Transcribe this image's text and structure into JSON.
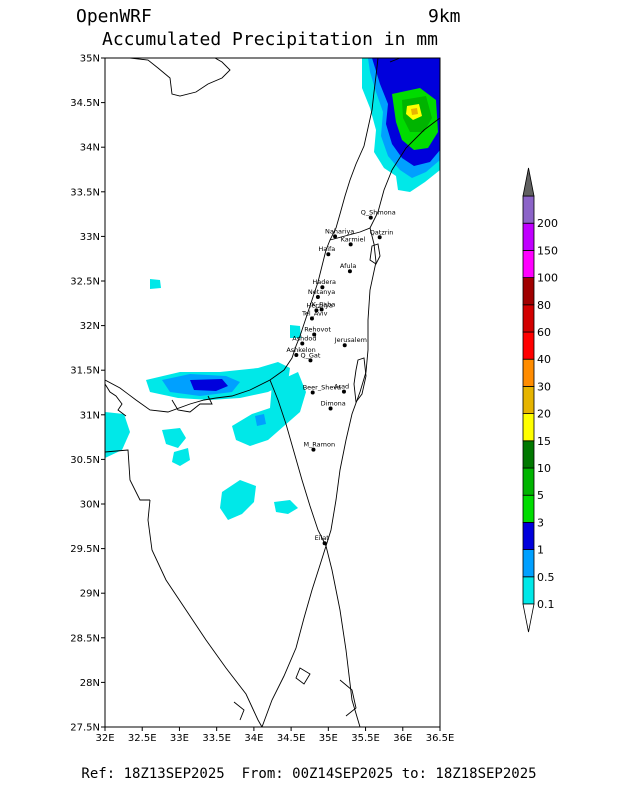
{
  "header": {
    "model": "OpenWRF",
    "resolution": "9km",
    "title": "Accumulated Precipitation in mm"
  },
  "footer": {
    "reference": "Ref: 18Z13SEP2025  From: 00Z14SEP2025 to: 18Z18SEP2025"
  },
  "map": {
    "lon_range": [
      32,
      36.5
    ],
    "lat_range": [
      27.5,
      35
    ],
    "lat_ticks": [
      {
        "value": 35,
        "label": "35N"
      },
      {
        "value": 34.5,
        "label": "34.5N"
      },
      {
        "value": 34,
        "label": "34N"
      },
      {
        "value": 33.5,
        "label": "33.5N"
      },
      {
        "value": 33,
        "label": "33N"
      },
      {
        "value": 32.5,
        "label": "32.5N"
      },
      {
        "value": 32,
        "label": "32N"
      },
      {
        "value": 31.5,
        "label": "31.5N"
      },
      {
        "value": 31,
        "label": "31N"
      },
      {
        "value": 30.5,
        "label": "30.5N"
      },
      {
        "value": 30,
        "label": "30N"
      },
      {
        "value": 29.5,
        "label": "29.5N"
      },
      {
        "value": 29,
        "label": "29N"
      },
      {
        "value": 28.5,
        "label": "28.5N"
      },
      {
        "value": 28,
        "label": "28N"
      },
      {
        "value": 27.5,
        "label": "27.5N"
      }
    ],
    "lon_ticks": [
      {
        "value": 32,
        "label": "32E"
      },
      {
        "value": 32.5,
        "label": "32.5E"
      },
      {
        "value": 33,
        "label": "33E"
      },
      {
        "value": 33.5,
        "label": "33.5E"
      },
      {
        "value": 34,
        "label": "34E"
      },
      {
        "value": 34.5,
        "label": "34.5E"
      },
      {
        "value": 35,
        "label": "35E"
      },
      {
        "value": 35.5,
        "label": "35.5E"
      },
      {
        "value": 36,
        "label": "36E"
      },
      {
        "value": 36.5,
        "label": "36.5E"
      }
    ],
    "cities": [
      {
        "name": "Q_Shmona",
        "lon": 35.57,
        "lat": 33.21
      },
      {
        "name": "Nahariya",
        "lon": 35.09,
        "lat": 33.0
      },
      {
        "name": "Karmiel",
        "lon": 35.3,
        "lat": 32.91
      },
      {
        "name": "Qatzrin",
        "lon": 35.69,
        "lat": 32.99
      },
      {
        "name": "Haifa",
        "lon": 35.0,
        "lat": 32.8
      },
      {
        "name": "Afula",
        "lon": 35.29,
        "lat": 32.61
      },
      {
        "name": "Hadera",
        "lon": 34.92,
        "lat": 32.43
      },
      {
        "name": "Netanya",
        "lon": 34.86,
        "lat": 32.32
      },
      {
        "name": "Herzliya",
        "lon": 34.84,
        "lat": 32.17
      },
      {
        "name": "K_Saba",
        "lon": 34.91,
        "lat": 32.18
      },
      {
        "name": "Tel_Aviv",
        "lon": 34.78,
        "lat": 32.08
      },
      {
        "name": "Rehovot",
        "lon": 34.81,
        "lat": 31.9
      },
      {
        "name": "Ashdod",
        "lon": 34.65,
        "lat": 31.8
      },
      {
        "name": "Jerusalem",
        "lon": 35.22,
        "lat": 31.78
      },
      {
        "name": "Ashkelon",
        "lon": 34.57,
        "lat": 31.67
      },
      {
        "name": "Q_Gat",
        "lon": 34.76,
        "lat": 31.61
      },
      {
        "name": "Beer_Sheva",
        "lon": 34.79,
        "lat": 31.25
      },
      {
        "name": "Arad",
        "lon": 35.21,
        "lat": 31.26
      },
      {
        "name": "Dimona",
        "lon": 35.03,
        "lat": 31.07
      },
      {
        "name": "M_Ramon",
        "lon": 34.8,
        "lat": 30.61
      },
      {
        "name": "Eilat",
        "lon": 34.95,
        "lat": 29.56
      }
    ]
  },
  "legend": {
    "levels": [
      "0.1",
      "0.5",
      "1",
      "3",
      "5",
      "10",
      "15",
      "20",
      "30",
      "40",
      "60",
      "80",
      "100",
      "150",
      "200"
    ],
    "colors": [
      "#00e8e8",
      "#00a0ff",
      "#0000dc",
      "#00dc00",
      "#00b400",
      "#007800",
      "#ffff00",
      "#e6b400",
      "#ff8c00",
      "#ff0000",
      "#d20000",
      "#a00000",
      "#ff00ff",
      "#c000ff",
      "#8c64c8"
    ],
    "top_arrow_color": "#606060",
    "bottom_arrow_color": "#ffffff"
  }
}
